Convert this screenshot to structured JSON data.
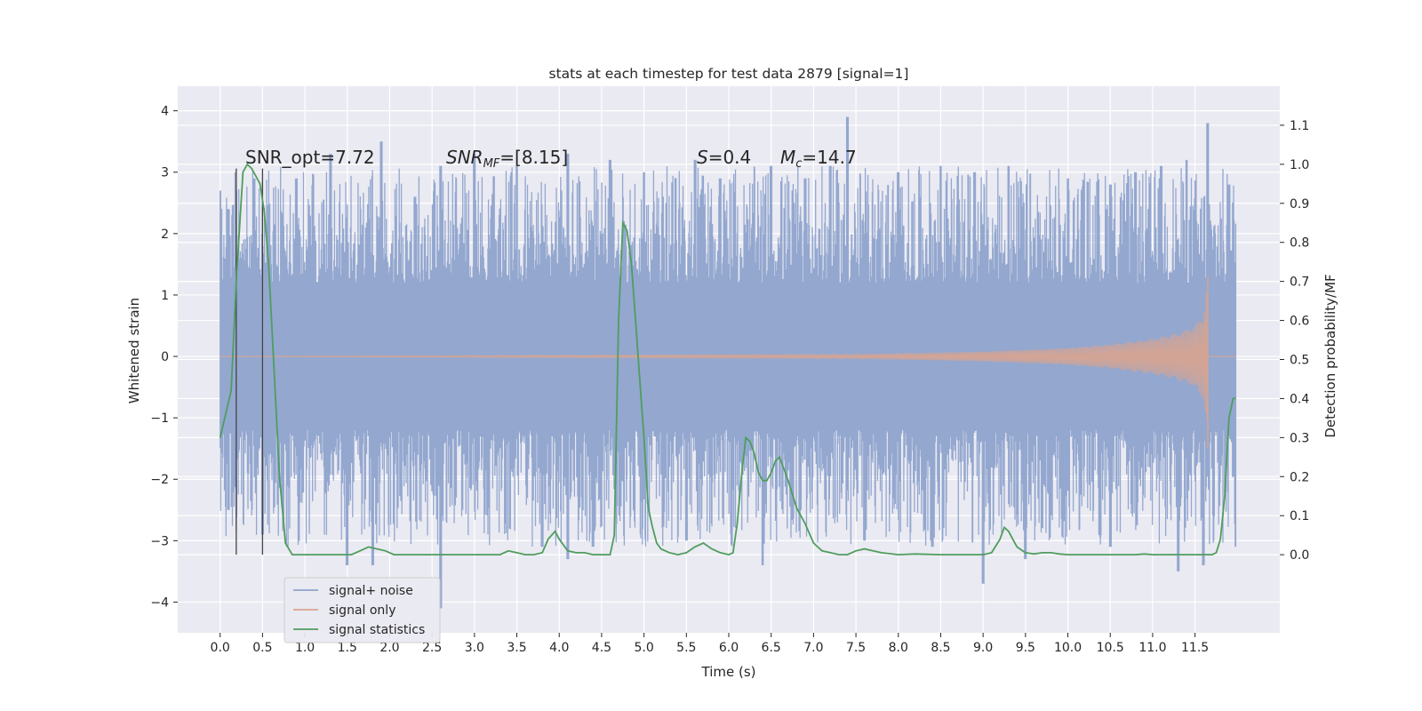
{
  "chart_data": {
    "type": "line",
    "title": "stats at each timestep for test data 2879 [signal=1]",
    "xlabel": "Time (s)",
    "ylabel_left": "Whitened strain",
    "ylabel_right": "Detection probability/MF",
    "xlim": [
      -0.5,
      12.5
    ],
    "ylim_left": [
      -4.5,
      4.4
    ],
    "ylim_right": [
      -0.2,
      1.2
    ],
    "x_ticks": [
      0.0,
      0.5,
      1.0,
      1.5,
      2.0,
      2.5,
      3.0,
      3.5,
      4.0,
      4.5,
      5.0,
      5.5,
      6.0,
      6.5,
      7.0,
      7.5,
      8.0,
      8.5,
      9.0,
      9.5,
      10.0,
      10.5,
      11.0,
      11.5
    ],
    "x_tick_labels": [
      "0.0",
      "0.5",
      "1.0",
      "1.5",
      "2.0",
      "2.5",
      "3.0",
      "3.5",
      "4.0",
      "4.5",
      "5.0",
      "5.5",
      "6.0",
      "6.5",
      "7.0",
      "7.5",
      "8.0",
      "8.5",
      "9.0",
      "9.5",
      "10.0",
      "10.5",
      "11.0",
      "11.5"
    ],
    "y_left_ticks": [
      -4,
      -3,
      -2,
      -1,
      0,
      1,
      2,
      3,
      4
    ],
    "y_left_tick_labels": [
      "−4",
      "−3",
      "−2",
      "−1",
      "0",
      "1",
      "2",
      "3",
      "4"
    ],
    "y_right_ticks": [
      0.0,
      0.1,
      0.2,
      0.3,
      0.4,
      0.5,
      0.6,
      0.7,
      0.8,
      0.9,
      1.0,
      1.1
    ],
    "y_right_tick_labels": [
      "0.0",
      "0.1",
      "0.2",
      "0.3",
      "0.4",
      "0.5",
      "0.6",
      "0.7",
      "0.8",
      "0.9",
      "1.0",
      "1.1"
    ],
    "grid": true,
    "legend_position": "lower-left",
    "annotations": {
      "snr_opt": "SNR_opt=7.72",
      "snr_mf_main": "SNR",
      "snr_mf_sub": "MF",
      "snr_mf_value": "=[8.15]",
      "s_main": "S",
      "s_value": "=0.4",
      "mc_main": "M",
      "mc_sub": "c",
      "mc_value": "=14.7"
    },
    "vertical_lines_x": [
      0.19,
      0.5
    ],
    "series": [
      {
        "name": "signal+ noise",
        "color": "#8ea3cc",
        "axis": "left",
        "x_range": [
          0.0,
          11.98
        ],
        "envelope_upper": 2.0,
        "envelope_lower": -2.0,
        "peaks": [
          [
            0.0,
            2.7
          ],
          [
            0.1,
            2.4
          ],
          [
            0.4,
            2.9
          ],
          [
            0.9,
            2.9
          ],
          [
            1.3,
            3.3
          ],
          [
            1.9,
            3.5
          ],
          [
            2.3,
            2.6
          ],
          [
            2.6,
            3.1
          ],
          [
            3.0,
            3.3
          ],
          [
            3.5,
            3.1
          ],
          [
            4.1,
            3.3
          ],
          [
            4.6,
            3.2
          ],
          [
            5.0,
            3.0
          ],
          [
            5.6,
            3.2
          ],
          [
            5.9,
            2.9
          ],
          [
            6.5,
            3.1
          ],
          [
            6.9,
            2.9
          ],
          [
            7.2,
            3.1
          ],
          [
            7.4,
            3.9
          ],
          [
            8.0,
            3.0
          ],
          [
            8.5,
            3.1
          ],
          [
            8.9,
            3.0
          ],
          [
            9.3,
            3.1
          ],
          [
            10.0,
            2.9
          ],
          [
            10.5,
            2.8
          ],
          [
            10.8,
            3.0
          ],
          [
            11.1,
            3.1
          ],
          [
            11.4,
            3.2
          ],
          [
            11.65,
            3.8
          ],
          [
            11.9,
            2.8
          ]
        ],
        "troughs": [
          [
            0.1,
            -2.5
          ],
          [
            0.5,
            -2.9
          ],
          [
            1.5,
            -3.4
          ],
          [
            1.8,
            -3.4
          ],
          [
            2.6,
            -4.1
          ],
          [
            3.8,
            -3.1
          ],
          [
            4.1,
            -3.3
          ],
          [
            4.4,
            -3.1
          ],
          [
            5.5,
            -3.0
          ],
          [
            6.4,
            -3.4
          ],
          [
            7.6,
            -3.0
          ],
          [
            8.4,
            -3.1
          ],
          [
            9.0,
            -3.7
          ],
          [
            9.5,
            -3.3
          ],
          [
            10.5,
            -3.1
          ],
          [
            11.3,
            -3.5
          ],
          [
            11.6,
            -3.4
          ],
          [
            11.98,
            -3.1
          ]
        ]
      },
      {
        "name": "signal only",
        "color": "#d9a48f",
        "axis": "left",
        "chirp_start": 7.5,
        "chirp_end": 11.65,
        "amplitude_peak": 1.3,
        "x": [
          0.0,
          7.5,
          9.0,
          10.0,
          10.5,
          11.0,
          11.3,
          11.5,
          11.6,
          11.65,
          11.7,
          11.98
        ],
        "amplitude": [
          0.0,
          0.03,
          0.08,
          0.14,
          0.2,
          0.29,
          0.38,
          0.5,
          0.7,
          1.3,
          0.0,
          0.0
        ]
      },
      {
        "name": "signal statistics",
        "color": "#4f9d5e",
        "axis": "right",
        "x": [
          0.0,
          0.13,
          0.19,
          0.27,
          0.32,
          0.37,
          0.42,
          0.47,
          0.52,
          0.57,
          0.63,
          0.7,
          0.77,
          0.85,
          1.0,
          1.2,
          1.4,
          1.55,
          1.65,
          1.75,
          1.85,
          1.95,
          2.05,
          2.3,
          3.0,
          3.3,
          3.4,
          3.5,
          3.6,
          3.7,
          3.8,
          3.87,
          3.95,
          4.0,
          4.1,
          4.2,
          4.3,
          4.4,
          4.6,
          4.65,
          4.7,
          4.75,
          4.8,
          4.85,
          4.9,
          4.95,
          5.0,
          5.05,
          5.1,
          5.15,
          5.2,
          5.3,
          5.4,
          5.5,
          5.6,
          5.7,
          5.8,
          5.9,
          6.0,
          6.05,
          6.1,
          6.15,
          6.2,
          6.25,
          6.3,
          6.35,
          6.4,
          6.45,
          6.5,
          6.55,
          6.6,
          6.65,
          6.7,
          6.8,
          6.9,
          7.0,
          7.1,
          7.2,
          7.3,
          7.4,
          7.5,
          7.6,
          7.7,
          7.8,
          8.0,
          8.2,
          8.5,
          9.0,
          9.1,
          9.2,
          9.25,
          9.3,
          9.35,
          9.4,
          9.5,
          9.6,
          9.7,
          9.8,
          9.9,
          10.0,
          10.5,
          10.8,
          10.9,
          11.0,
          11.5,
          11.7,
          11.75,
          11.8,
          11.85,
          11.9,
          11.95,
          11.98
        ],
        "y": [
          0.3,
          0.42,
          0.7,
          0.98,
          1.0,
          0.99,
          0.97,
          0.95,
          0.88,
          0.75,
          0.5,
          0.2,
          0.03,
          0.0,
          0.0,
          0.0,
          0.0,
          0.0,
          0.01,
          0.02,
          0.015,
          0.01,
          0.0,
          0.0,
          0.0,
          0.0,
          0.01,
          0.005,
          0.0,
          0.0,
          0.005,
          0.04,
          0.06,
          0.04,
          0.01,
          0.005,
          0.005,
          0.0,
          0.0,
          0.05,
          0.6,
          0.85,
          0.83,
          0.75,
          0.6,
          0.45,
          0.3,
          0.12,
          0.07,
          0.03,
          0.015,
          0.005,
          0.0,
          0.005,
          0.02,
          0.03,
          0.015,
          0.005,
          0.0,
          0.005,
          0.08,
          0.2,
          0.3,
          0.29,
          0.26,
          0.21,
          0.19,
          0.19,
          0.21,
          0.24,
          0.25,
          0.22,
          0.19,
          0.12,
          0.08,
          0.03,
          0.01,
          0.005,
          0.0,
          0.0,
          0.01,
          0.015,
          0.01,
          0.005,
          0.0,
          0.002,
          0.0,
          0.0,
          0.005,
          0.04,
          0.07,
          0.06,
          0.04,
          0.02,
          0.005,
          0.002,
          0.005,
          0.005,
          0.002,
          0.0,
          0.0,
          0.0,
          0.002,
          0.0,
          0.0,
          0.0,
          0.005,
          0.04,
          0.15,
          0.35,
          0.4,
          0.4
        ]
      }
    ]
  }
}
